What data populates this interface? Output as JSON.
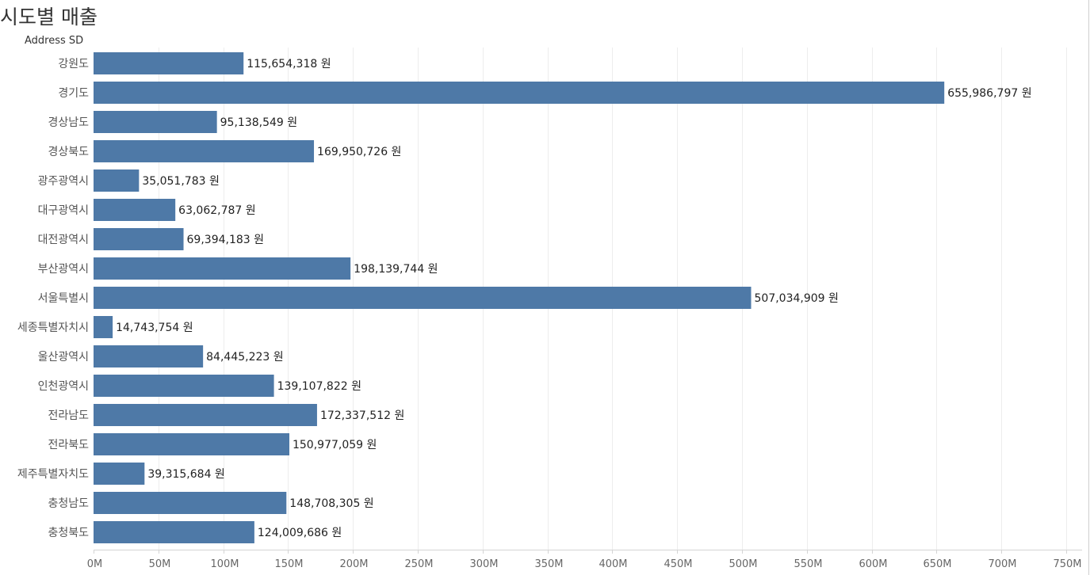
{
  "chart_data": {
    "type": "bar",
    "orientation": "horizontal",
    "title": "시도별 매출",
    "dimension_header": "Address SD",
    "categories": [
      "강원도",
      "경기도",
      "경상남도",
      "경상북도",
      "광주광역시",
      "대구광역시",
      "대전광역시",
      "부산광역시",
      "서울특별시",
      "세종특별자치시",
      "울산광역시",
      "인천광역시",
      "전라남도",
      "전라북도",
      "제주특별자치도",
      "충청남도",
      "충청북도"
    ],
    "values": [
      115654318,
      655986797,
      95138549,
      169950726,
      35051783,
      63062787,
      69394183,
      198139744,
      507034909,
      14743754,
      84445223,
      139107822,
      172337512,
      150977059,
      39315684,
      148708305,
      124009686
    ],
    "value_labels": [
      "115,654,318 원",
      "655,986,797 원",
      "95,138,549 원",
      "169,950,726 원",
      "35,051,783 원",
      "63,062,787 원",
      "69,394,183 원",
      "198,139,744 원",
      "507,034,909 원",
      "14,743,754 원",
      "84,445,223 원",
      "139,107,822 원",
      "172,337,512 원",
      "150,977,059 원",
      "39,315,684 원",
      "148,708,305 원",
      "124,009,686 원"
    ],
    "xlim": [
      0,
      750000000
    ],
    "x_ticks": [
      0,
      50000000,
      100000000,
      150000000,
      200000000,
      250000000,
      300000000,
      350000000,
      400000000,
      450000000,
      500000000,
      550000000,
      600000000,
      650000000,
      700000000,
      750000000
    ],
    "x_tick_labels": [
      "0M",
      "50M",
      "100M",
      "150M",
      "200M",
      "250M",
      "300M",
      "350M",
      "400M",
      "450M",
      "500M",
      "550M",
      "600M",
      "650M",
      "700M",
      "750M"
    ],
    "grid": true,
    "bar_color": "#4e79a7",
    "grid_color": "#ededed",
    "axis_color": "#d4d4d4"
  }
}
